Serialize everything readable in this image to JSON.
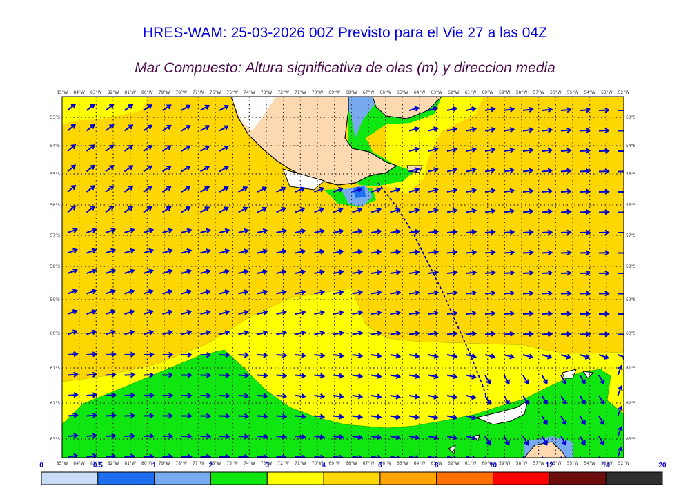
{
  "header": {
    "title": "HRES-WAM: 25-03-2026 00Z Previsto para el Vie 27 a las 04Z",
    "subtitle": "Mar Compuesto: Altura significativa de olas (m) y direccion media"
  },
  "axes": {
    "lon_labels": [
      "85°W",
      "84°W",
      "83°W",
      "82°W",
      "81°W",
      "80°W",
      "79°W",
      "78°W",
      "77°W",
      "76°W",
      "75°W",
      "74°W",
      "73°W",
      "72°W",
      "71°W",
      "70°W",
      "69°W",
      "68°W",
      "67°W",
      "66°W",
      "65°W",
      "64°W",
      "63°W",
      "62°W",
      "61°W",
      "60°W",
      "59°W",
      "58°W",
      "57°W",
      "56°W",
      "55°W",
      "54°W",
      "53°W",
      "52°W"
    ],
    "lat_labels": [
      "53°S",
      "54°S",
      "55°S",
      "56°S",
      "57°S",
      "58°S",
      "59°S",
      "60°S",
      "61°S",
      "62°S",
      "63°S"
    ]
  },
  "legend": {
    "labels": [
      "0",
      "0.5",
      "1",
      "2",
      "3",
      "4",
      "6",
      "8",
      "10",
      "12",
      "14",
      "20"
    ],
    "colors": [
      "#c8ddf5",
      "#1e6ff0",
      "#78aaf0",
      "#10e610",
      "#ffff00",
      "#ffd700",
      "#ffa500",
      "#ff7000",
      "#ff0000",
      "#6b0d0d",
      "#2e2e2e"
    ]
  },
  "map_colors": {
    "land": "#fcd9b0",
    "coast_white": "#ffffff",
    "arrow": "#0000d0",
    "grid": "#222222",
    "track": "#0000d0"
  }
}
